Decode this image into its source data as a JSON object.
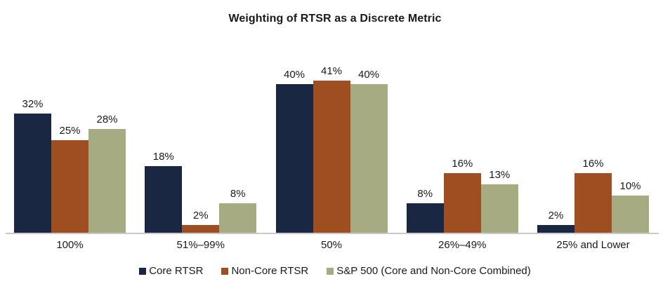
{
  "chart_data": {
    "type": "bar",
    "title": "Weighting of RTSR as a Discrete Metric",
    "categories": [
      "100%",
      "51%–99%",
      "50%",
      "26%–49%",
      "25% and Lower"
    ],
    "series": [
      {
        "name": "Core RTSR",
        "color": "#1a2742",
        "values": [
          32,
          18,
          40,
          8,
          2
        ]
      },
      {
        "name": "Non-Core RTSR",
        "color": "#9e4e21",
        "values": [
          25,
          2,
          41,
          16,
          16
        ]
      },
      {
        "name": "S&P 500 (Core and Non-Core Combined)",
        "color": "#a6ab82",
        "values": [
          28,
          8,
          40,
          13,
          10
        ]
      }
    ],
    "value_suffix": "%",
    "data_labels": true,
    "xlabel": "",
    "ylabel": "",
    "ylim": [
      0,
      45
    ],
    "grid": false,
    "legend_position": "bottom",
    "axis_line_color": "#c9c9c9"
  }
}
